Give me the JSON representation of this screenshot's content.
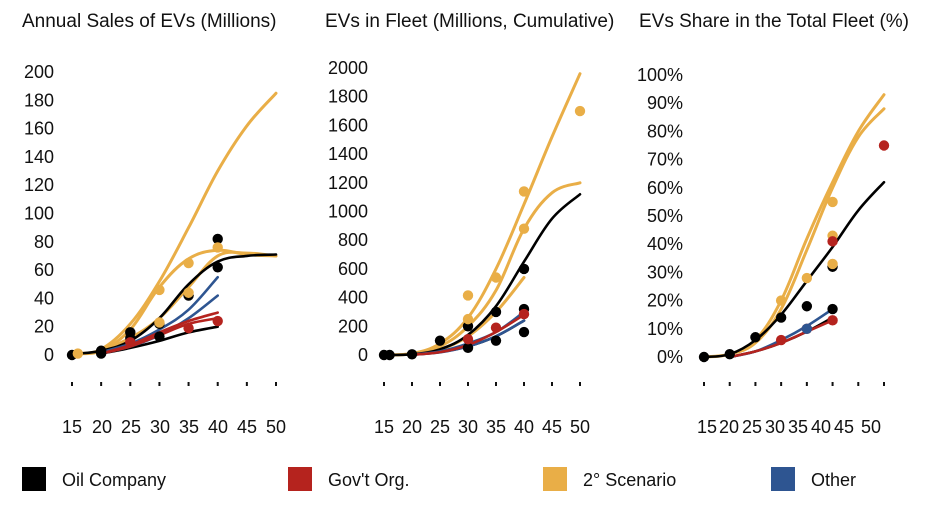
{
  "colors": {
    "oil": "#000000",
    "gov": "#b5231e",
    "scen": "#e9ae47",
    "other": "#2e5591"
  },
  "legend": [
    {
      "key": "oil",
      "label": "Oil Company"
    },
    {
      "key": "gov",
      "label": "Gov't Org."
    },
    {
      "key": "scen",
      "label": "2° Scenario"
    },
    {
      "key": "other",
      "label": "Other"
    }
  ],
  "chart_data": [
    {
      "type": "line",
      "title": "Annual Sales of EVs (Millions)",
      "ylim": [
        0,
        200
      ],
      "yticks": [
        0,
        20,
        40,
        60,
        80,
        100,
        120,
        140,
        160,
        180,
        200
      ],
      "ytick_labels": [
        "0",
        "20",
        "40",
        "60",
        "80",
        "100",
        "120",
        "140",
        "160",
        "180",
        "200"
      ],
      "xlim": [
        15,
        50
      ],
      "xticks": [
        15,
        20,
        25,
        30,
        35,
        40,
        45,
        50
      ],
      "xtick_labels": [
        "15",
        "20",
        "25",
        "30",
        "35",
        "40",
        "45",
        "50"
      ],
      "lines": [
        {
          "series": "scen",
          "points": [
            [
              16,
              1
            ],
            [
              20,
              4
            ],
            [
              25,
              22
            ],
            [
              30,
              52
            ],
            [
              35,
              90
            ],
            [
              40,
              130
            ],
            [
              45,
              162
            ],
            [
              50,
              185
            ]
          ]
        },
        {
          "series": "scen",
          "points": [
            [
              16,
              1
            ],
            [
              20,
              3
            ],
            [
              25,
              18
            ],
            [
              30,
              48
            ],
            [
              35,
              68
            ],
            [
              40,
              74
            ],
            [
              45,
              71
            ],
            [
              50,
              70
            ]
          ]
        },
        {
          "series": "scen",
          "points": [
            [
              20,
              3
            ],
            [
              25,
              12
            ],
            [
              30,
              26
            ],
            [
              35,
              48
            ],
            [
              40,
              70
            ],
            [
              45,
              72
            ],
            [
              50,
              70
            ]
          ]
        },
        {
          "series": "oil",
          "points": [
            [
              16,
              1
            ],
            [
              20,
              3
            ],
            [
              25,
              10
            ],
            [
              30,
              26
            ],
            [
              35,
              50
            ],
            [
              40,
              66
            ],
            [
              45,
              70
            ],
            [
              50,
              71
            ]
          ]
        },
        {
          "series": "oil",
          "points": [
            [
              20,
              1
            ],
            [
              25,
              5
            ],
            [
              30,
              10
            ],
            [
              35,
              16
            ],
            [
              40,
              20
            ]
          ]
        },
        {
          "series": "other",
          "points": [
            [
              20,
              2
            ],
            [
              25,
              8
            ],
            [
              30,
              18
            ],
            [
              35,
              32
            ],
            [
              40,
              55
            ]
          ]
        },
        {
          "series": "other",
          "points": [
            [
              20,
              1
            ],
            [
              25,
              6
            ],
            [
              30,
              14
            ],
            [
              35,
              26
            ],
            [
              40,
              42
            ]
          ]
        },
        {
          "series": "gov",
          "points": [
            [
              20,
              1
            ],
            [
              25,
              7
            ],
            [
              30,
              16
            ],
            [
              35,
              24
            ],
            [
              40,
              30
            ]
          ]
        },
        {
          "series": "gov",
          "points": [
            [
              20,
              1
            ],
            [
              25,
              6
            ],
            [
              30,
              14
            ],
            [
              35,
              22
            ],
            [
              40,
              26
            ]
          ]
        }
      ],
      "points": [
        {
          "series": "oil",
          "x": 15,
          "y": 0
        },
        {
          "series": "oil",
          "x": 20,
          "y": 3
        },
        {
          "series": "oil",
          "x": 20,
          "y": 1
        },
        {
          "series": "oil",
          "x": 25,
          "y": 16
        },
        {
          "series": "oil",
          "x": 25,
          "y": 12
        },
        {
          "series": "oil",
          "x": 30,
          "y": 22
        },
        {
          "series": "oil",
          "x": 30,
          "y": 13
        },
        {
          "series": "oil",
          "x": 35,
          "y": 42
        },
        {
          "series": "oil",
          "x": 40,
          "y": 82
        },
        {
          "series": "oil",
          "x": 40,
          "y": 62
        },
        {
          "series": "scen",
          "x": 16,
          "y": 1
        },
        {
          "series": "scen",
          "x": 30,
          "y": 46
        },
        {
          "series": "scen",
          "x": 30,
          "y": 23
        },
        {
          "series": "scen",
          "x": 35,
          "y": 65
        },
        {
          "series": "scen",
          "x": 35,
          "y": 44
        },
        {
          "series": "scen",
          "x": 40,
          "y": 76
        },
        {
          "series": "gov",
          "x": 25,
          "y": 9
        },
        {
          "series": "gov",
          "x": 35,
          "y": 19
        },
        {
          "series": "gov",
          "x": 40,
          "y": 24
        }
      ]
    },
    {
      "type": "line",
      "title": "EVs in Fleet (Millions, Cumulative)",
      "ylim": [
        0,
        2000
      ],
      "yticks": [
        0,
        200,
        400,
        600,
        800,
        1000,
        1200,
        1400,
        1600,
        1800,
        2000
      ],
      "ytick_labels": [
        "0",
        "200",
        "400",
        "600",
        "800",
        "1000",
        "1200",
        "1400",
        "1600",
        "1800",
        "2000"
      ],
      "xlim": [
        15,
        50
      ],
      "xticks": [
        15,
        20,
        25,
        30,
        35,
        40,
        45,
        50
      ],
      "xtick_labels": [
        "15",
        "20",
        "25",
        "30",
        "35",
        "40",
        "45",
        "50"
      ],
      "lines": [
        {
          "series": "scen",
          "points": [
            [
              15,
              0
            ],
            [
              20,
              10
            ],
            [
              25,
              80
            ],
            [
              30,
              260
            ],
            [
              35,
              600
            ],
            [
              40,
              1050
            ],
            [
              45,
              1520
            ],
            [
              50,
              1960
            ]
          ]
        },
        {
          "series": "scen",
          "points": [
            [
              15,
              0
            ],
            [
              20,
              10
            ],
            [
              25,
              60
            ],
            [
              30,
              200
            ],
            [
              35,
              450
            ],
            [
              40,
              880
            ],
            [
              45,
              1130
            ],
            [
              50,
              1200
            ]
          ]
        },
        {
          "series": "scen",
          "points": [
            [
              20,
              5
            ],
            [
              25,
              40
            ],
            [
              30,
              130
            ],
            [
              35,
              300
            ],
            [
              40,
              540
            ]
          ]
        },
        {
          "series": "oil",
          "points": [
            [
              15,
              0
            ],
            [
              20,
              5
            ],
            [
              25,
              40
            ],
            [
              30,
              140
            ],
            [
              35,
              340
            ],
            [
              40,
              650
            ],
            [
              45,
              950
            ],
            [
              50,
              1120
            ]
          ]
        },
        {
          "series": "oil",
          "points": [
            [
              20,
              2
            ],
            [
              25,
              20
            ],
            [
              30,
              60
            ],
            [
              35,
              130
            ],
            [
              40,
              240
            ]
          ]
        },
        {
          "series": "other",
          "points": [
            [
              20,
              3
            ],
            [
              25,
              25
            ],
            [
              30,
              80
            ],
            [
              35,
              160
            ],
            [
              40,
              300
            ]
          ]
        },
        {
          "series": "other",
          "points": [
            [
              20,
              2
            ],
            [
              25,
              18
            ],
            [
              30,
              60
            ],
            [
              35,
              130
            ],
            [
              40,
              240
            ]
          ]
        },
        {
          "series": "gov",
          "points": [
            [
              20,
              2
            ],
            [
              25,
              20
            ],
            [
              30,
              70
            ],
            [
              35,
              160
            ],
            [
              40,
              280
            ]
          ]
        }
      ],
      "points": [
        {
          "series": "oil",
          "x": 15,
          "y": 0
        },
        {
          "series": "oil",
          "x": 16,
          "y": 0
        },
        {
          "series": "oil",
          "x": 20,
          "y": 5
        },
        {
          "series": "oil",
          "x": 25,
          "y": 100
        },
        {
          "series": "oil",
          "x": 30,
          "y": 200
        },
        {
          "series": "oil",
          "x": 30,
          "y": 50
        },
        {
          "series": "oil",
          "x": 35,
          "y": 300
        },
        {
          "series": "oil",
          "x": 35,
          "y": 100
        },
        {
          "series": "oil",
          "x": 40,
          "y": 600
        },
        {
          "series": "oil",
          "x": 40,
          "y": 320
        },
        {
          "series": "oil",
          "x": 40,
          "y": 160
        },
        {
          "series": "scen",
          "x": 30,
          "y": 415
        },
        {
          "series": "scen",
          "x": 30,
          "y": 250
        },
        {
          "series": "scen",
          "x": 35,
          "y": 540
        },
        {
          "series": "scen",
          "x": 40,
          "y": 1140
        },
        {
          "series": "scen",
          "x": 40,
          "y": 880
        },
        {
          "series": "scen",
          "x": 50,
          "y": 1700
        },
        {
          "series": "gov",
          "x": 30,
          "y": 110
        },
        {
          "series": "gov",
          "x": 35,
          "y": 190
        },
        {
          "series": "gov",
          "x": 40,
          "y": 285
        }
      ]
    },
    {
      "type": "line",
      "title": "EVs Share in the Total Fleet (%)",
      "ylim": [
        0,
        100
      ],
      "yticks": [
        0,
        10,
        20,
        30,
        40,
        50,
        60,
        70,
        80,
        90,
        100
      ],
      "ytick_labels": [
        "0%",
        "10%",
        "20%",
        "30%",
        "40%",
        "50%",
        "60%",
        "70%",
        "80%",
        "90%",
        "100%"
      ],
      "xlim": [
        15,
        50
      ],
      "xticks": [
        15,
        20,
        25,
        30,
        35,
        40,
        45,
        50
      ],
      "xtick_labels": [
        "15",
        "20",
        "25",
        "30",
        "35",
        "40",
        "45",
        "50"
      ],
      "lines": [
        {
          "series": "scen",
          "points": [
            [
              15,
              0
            ],
            [
              20,
              1
            ],
            [
              25,
              6
            ],
            [
              30,
              20
            ],
            [
              35,
              42
            ],
            [
              40,
              62
            ],
            [
              45,
              80
            ],
            [
              50,
              93
            ]
          ]
        },
        {
          "series": "scen",
          "points": [
            [
              15,
              0
            ],
            [
              20,
              1
            ],
            [
              25,
              5
            ],
            [
              30,
              17
            ],
            [
              35,
              38
            ],
            [
              40,
              60
            ],
            [
              45,
              78
            ],
            [
              50,
              88
            ]
          ]
        },
        {
          "series": "oil",
          "points": [
            [
              15,
              0
            ],
            [
              20,
              1
            ],
            [
              25,
              6
            ],
            [
              30,
              15
            ],
            [
              35,
              27
            ],
            [
              40,
              39
            ],
            [
              45,
              52
            ],
            [
              50,
              62
            ]
          ]
        },
        {
          "series": "oil",
          "points": [
            [
              20,
              0
            ],
            [
              25,
              2
            ],
            [
              30,
              5
            ],
            [
              35,
              9
            ],
            [
              40,
              14
            ]
          ]
        },
        {
          "series": "other",
          "points": [
            [
              20,
              0
            ],
            [
              25,
              2
            ],
            [
              30,
              6
            ],
            [
              35,
              11
            ],
            [
              40,
              17
            ]
          ]
        },
        {
          "series": "gov",
          "points": [
            [
              20,
              0
            ],
            [
              25,
              2
            ],
            [
              30,
              5
            ],
            [
              35,
              9
            ],
            [
              40,
              13
            ]
          ]
        }
      ],
      "points": [
        {
          "series": "oil",
          "x": 15,
          "y": 0
        },
        {
          "series": "oil",
          "x": 20,
          "y": 1
        },
        {
          "series": "oil",
          "x": 25,
          "y": 7
        },
        {
          "series": "oil",
          "x": 30,
          "y": 14
        },
        {
          "series": "oil",
          "x": 35,
          "y": 18
        },
        {
          "series": "oil",
          "x": 40,
          "y": 32
        },
        {
          "series": "oil",
          "x": 40,
          "y": 17
        },
        {
          "series": "scen",
          "x": 30,
          "y": 20
        },
        {
          "series": "scen",
          "x": 35,
          "y": 28
        },
        {
          "series": "scen",
          "x": 40,
          "y": 55
        },
        {
          "series": "scen",
          "x": 40,
          "y": 43
        },
        {
          "series": "scen",
          "x": 40,
          "y": 33
        },
        {
          "series": "gov",
          "x": 30,
          "y": 6
        },
        {
          "series": "gov",
          "x": 35,
          "y": 10
        },
        {
          "series": "gov",
          "x": 40,
          "y": 41
        },
        {
          "series": "gov",
          "x": 40,
          "y": 13
        },
        {
          "series": "gov",
          "x": 50,
          "y": 75
        },
        {
          "series": "other",
          "x": 35,
          "y": 10
        }
      ]
    }
  ]
}
